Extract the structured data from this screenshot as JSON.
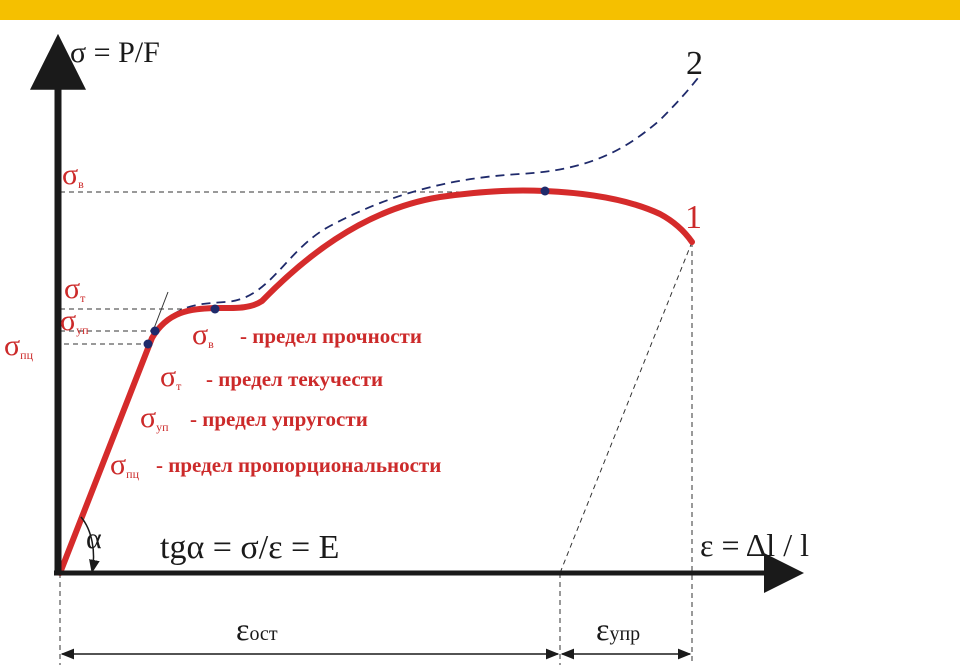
{
  "colors": {
    "top_bar": "#f5c000",
    "axis": "#1a1a1a",
    "curve_1": "#d52b2b",
    "curve_2": "#1f2a6b",
    "points": "#1f2a6b",
    "labels_red": "#cc2a2a"
  },
  "axes": {
    "y_label": "σ = P/F",
    "x_label": "ε = Δl / l"
  },
  "curves": {
    "curve_1_label": "1",
    "curve_2_label": "2"
  },
  "y_markers": {
    "sigma_v": {
      "symbol": "σ",
      "sub": "в"
    },
    "sigma_t": {
      "symbol": "σ",
      "sub": "т"
    },
    "sigma_up": {
      "symbol": "σ",
      "sub": "уп"
    },
    "sigma_pts": {
      "symbol": "σ",
      "sub": "пц"
    }
  },
  "legend": [
    {
      "symbol": "σ",
      "sub": "в",
      "text": "- предел прочности"
    },
    {
      "symbol": "σ",
      "sub": "т",
      "text": "- предел текучести"
    },
    {
      "symbol": "σ",
      "sub": "уп",
      "text": "- предел упругости"
    },
    {
      "symbol": "σ",
      "sub": "пц",
      "text": "- предел пропорциональности"
    }
  ],
  "angle_label": "α",
  "formula": "tgα = σ/ε = E",
  "strain": {
    "residual": {
      "symbol": "ε",
      "sub": "ост"
    },
    "elastic": {
      "symbol": "ε",
      "sub": "упр"
    }
  }
}
